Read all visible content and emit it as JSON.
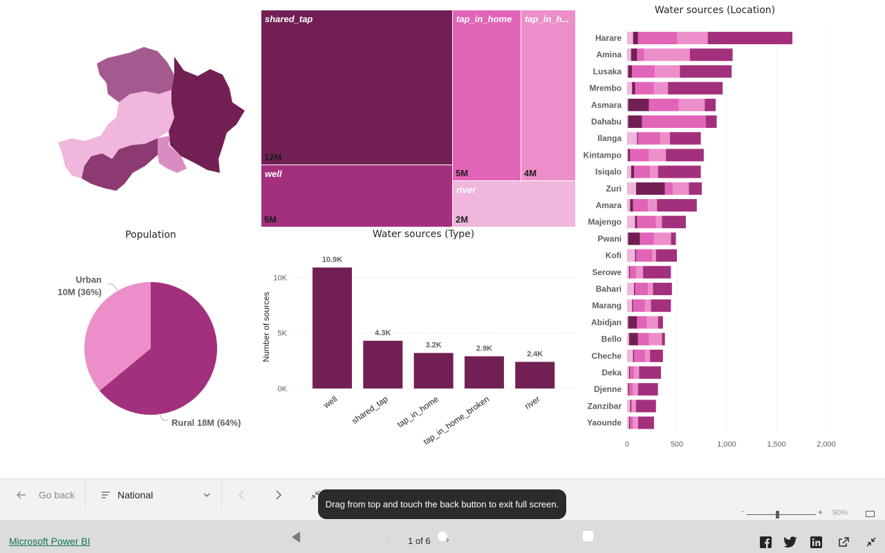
{
  "visuals": {
    "population": {
      "title": "Population",
      "urban_name": "Urban",
      "urban_detail": "10M (36%)",
      "rural_label": "Rural 18M (64%)",
      "urban_pct": 36,
      "rural_pct": 64,
      "urban_color": "#ec8fc9",
      "rural_color": "#a3307c"
    },
    "treemap": {
      "items": [
        {
          "name": "shared_tap",
          "value": "12M",
          "color": "#722054"
        },
        {
          "name": "well",
          "value": "5M",
          "color": "#a3307c"
        },
        {
          "name": "tap_in_home",
          "value": "5M",
          "color": "#e264b9"
        },
        {
          "name": "tap_in_h...",
          "value": "4M",
          "color": "#ec8fc9"
        },
        {
          "name": "river",
          "value": "2M",
          "color": "#f0b6dc"
        }
      ]
    },
    "type_title": "Water sources (Type)",
    "location_title": "Water sources (Location)"
  },
  "chart_data": [
    {
      "type": "bar",
      "title": "Water sources (Type)",
      "xlabel": "",
      "ylabel": "Number of sources",
      "categories": [
        "well",
        "shared_tap",
        "tap_in_home",
        "tap_in_home_broken",
        "river"
      ],
      "values": [
        10900,
        4300,
        3200,
        2900,
        2400
      ],
      "data_labels": [
        "10.9K",
        "4.3K",
        "3.2K",
        "2.9K",
        "2.4K"
      ],
      "y_ticks": [
        "0K",
        "5K",
        "10K"
      ],
      "ylim": [
        0,
        11000
      ],
      "grid": true,
      "color": "#722054"
    },
    {
      "type": "bar",
      "orientation": "horizontal",
      "stacked": true,
      "title": "Water sources (Location)",
      "categories": [
        "Harare",
        "Amina",
        "Lusaka",
        "Mrembo",
        "Asmara",
        "Dahabu",
        "Ilanga",
        "Kintampo",
        "Isiqalo",
        "Zuri",
        "Amara",
        "Majengo",
        "Pwani",
        "Kofi",
        "Serowe",
        "Bahari",
        "Marang",
        "Abidjan",
        "Bello",
        "Cheche",
        "Deka",
        "Djenne",
        "Zanzibar",
        "Yaounde"
      ],
      "x_ticks": [
        "0",
        "500",
        "1,000",
        "1,500",
        "2,000"
      ],
      "xlim": [
        0,
        2100
      ],
      "grid": true,
      "series": [
        {
          "color": "#f0b6dc",
          "values": [
            60,
            40,
            10,
            50,
            10,
            10,
            100,
            10,
            40,
            90,
            30,
            80,
            10,
            80,
            20,
            70,
            50,
            10,
            20,
            60,
            20,
            10,
            30,
            20
          ]
        },
        {
          "color": "#722054",
          "values": [
            50,
            60,
            40,
            30,
            210,
            140,
            10,
            20,
            30,
            290,
            30,
            20,
            120,
            10,
            10,
            10,
            10,
            90,
            90,
            10,
            10,
            10,
            10,
            10
          ]
        },
        {
          "color": "#e264b9",
          "values": [
            390,
            70,
            230,
            190,
            300,
            640,
            220,
            190,
            160,
            80,
            150,
            190,
            140,
            160,
            60,
            130,
            120,
            100,
            110,
            110,
            40,
            40,
            10,
            30
          ]
        },
        {
          "color": "#ec8fc9",
          "values": [
            310,
            460,
            250,
            140,
            260,
            0,
            100,
            170,
            80,
            160,
            90,
            60,
            170,
            40,
            70,
            50,
            60,
            110,
            130,
            50,
            50,
            50,
            40,
            50
          ]
        },
        {
          "color": "#a3307c",
          "values": [
            850,
            430,
            520,
            550,
            110,
            110,
            310,
            380,
            430,
            130,
            400,
            240,
            50,
            210,
            280,
            190,
            200,
            50,
            30,
            130,
            220,
            200,
            200,
            160
          ]
        }
      ]
    }
  ],
  "toolbar": {
    "go_back": "Go back",
    "page_selector": "National",
    "toast": "Drag from top and touch the back button to exit full screen."
  },
  "zoom": {
    "level": "90%"
  },
  "footer": {
    "brand": "Microsoft Power BI",
    "pager": "1 of 6"
  }
}
